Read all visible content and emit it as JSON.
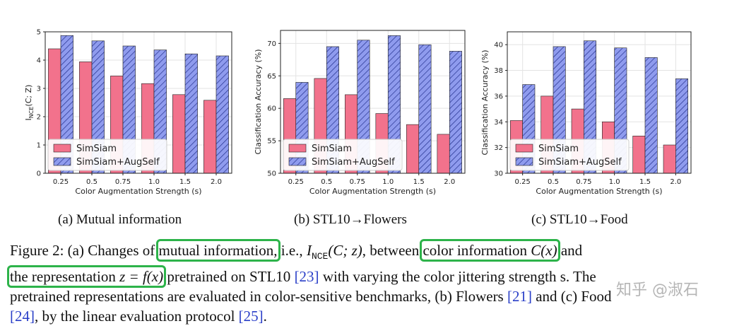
{
  "colors": {
    "simsiam": "#f2728c",
    "augself": "#8f9bee",
    "hatch": "#1c2a88"
  },
  "legend": [
    "SimSiam",
    "SimSiam+AugSelf"
  ],
  "chart_data": [
    {
      "type": "bar",
      "categories": [
        "0.25",
        "0.5",
        "0.75",
        "1.0",
        "1.5",
        "2.0"
      ],
      "series": [
        {
          "name": "SimSiam",
          "values": [
            4.4,
            3.94,
            3.44,
            3.17,
            2.78,
            2.58
          ]
        },
        {
          "name": "SimSiam+AugSelf",
          "values": [
            4.87,
            4.68,
            4.5,
            4.36,
            4.22,
            4.15
          ]
        }
      ],
      "ylim": [
        0,
        5
      ],
      "yticks": [
        "0",
        "1",
        "2",
        "3",
        "4",
        "5"
      ],
      "ylabel": "I",
      "ylabel_sub": "NCE",
      "ylabel_rest": "(C; Z)",
      "xlabel": "Color Augmentation Strength (s)",
      "legend_position": "lower-left",
      "grid": true,
      "subcaption": "(a) Mutual information"
    },
    {
      "type": "bar",
      "categories": [
        "0.25",
        "0.5",
        "0.75",
        "1.0",
        "1.5",
        "2.0"
      ],
      "series": [
        {
          "name": "SimSiam",
          "values": [
            61.5,
            64.6,
            62.1,
            59.2,
            57.5,
            56.0
          ]
        },
        {
          "name": "SimSiam+AugSelf",
          "values": [
            64.0,
            69.5,
            70.5,
            71.2,
            69.8,
            68.8
          ]
        }
      ],
      "ylim": [
        50,
        72
      ],
      "yticks": [
        "50",
        "55",
        "60",
        "65",
        "70"
      ],
      "ylabel": "Classification Accuracy (%)",
      "xlabel": "Color Augmentation Strength (s)",
      "legend_position": "lower-left",
      "grid": true,
      "subcaption": "(b) STL10→Flowers"
    },
    {
      "type": "bar",
      "categories": [
        "0.25",
        "0.5",
        "0.75",
        "1.0",
        "1.5",
        "2.0"
      ],
      "series": [
        {
          "name": "SimSiam",
          "values": [
            34.1,
            36.0,
            35.0,
            34.0,
            32.9,
            32.2
          ]
        },
        {
          "name": "SimSiam+AugSelf",
          "values": [
            36.9,
            39.85,
            40.3,
            39.75,
            39.0,
            37.35
          ]
        }
      ],
      "ylim": [
        30,
        41
      ],
      "yticks": [
        "30",
        "32",
        "34",
        "36",
        "38",
        "40"
      ],
      "ylabel": "Classification Accuracy (%)",
      "xlabel": "Color Augmentation Strength (s)",
      "legend_position": "lower-left",
      "grid": true,
      "subcaption": "(c) STL10→Food"
    }
  ],
  "caption": {
    "lead": "Figure 2: (a) Changes of ",
    "hl1": "mutual information,",
    "t1": " i.e., ",
    "t2": ", between ",
    "hl2": "color information ",
    "hl2_math": "C(x)",
    "t3": " and",
    "hl3": "the representation ",
    "hl3_math": "z = f(x)",
    "t4": " pretrained on STL10 ",
    "ref23": "[23]",
    "t5": " with varying the color jittering strength s. The",
    "line3": "pretrained representations are evaluated in color-sensitive benchmarks, (b) Flowers ",
    "ref21": "[21]",
    "t6": " and (c) Food",
    "ref24": "[24]",
    "t7": ", by the linear evaluation protocol ",
    "ref25": "[25]",
    "t8": ".",
    "formula_I": "I",
    "formula_sub": "NCE",
    "formula_args": "(C; z)"
  },
  "watermark": "知乎 @淑石"
}
